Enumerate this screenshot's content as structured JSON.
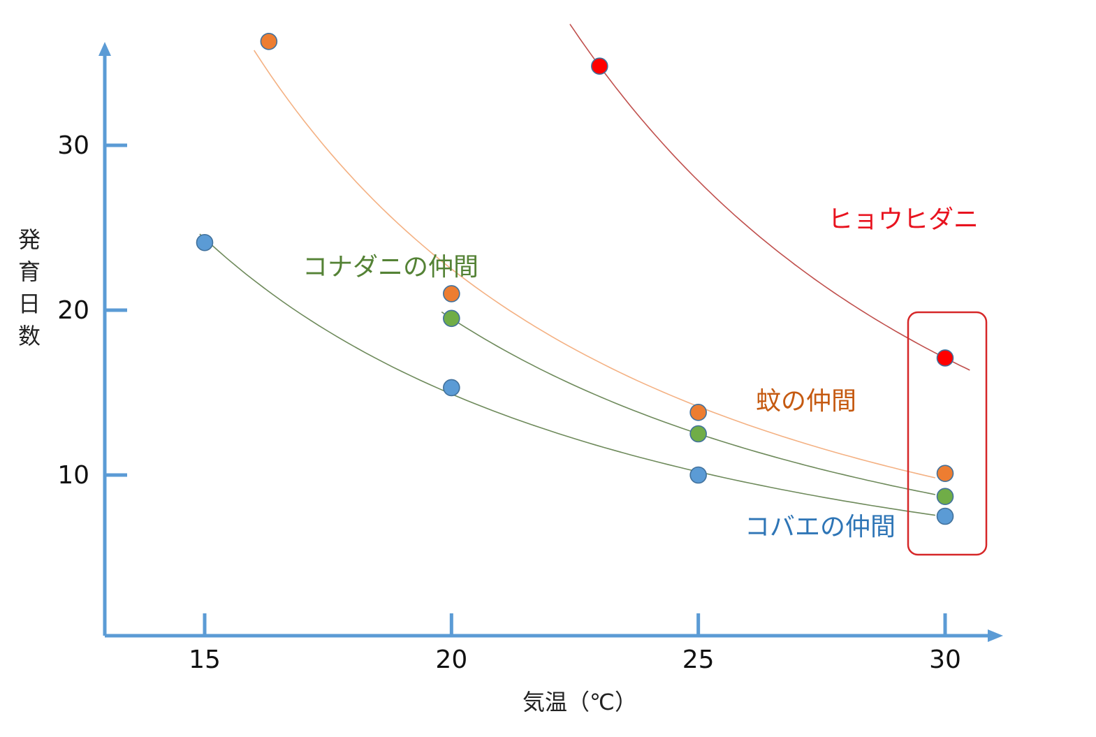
{
  "chart_data": {
    "type": "scatter",
    "title": "",
    "xlabel": "気温（℃）",
    "ylabel": "発育日数",
    "x_ticks": [
      15,
      20,
      25,
      30
    ],
    "y_ticks": [
      10,
      20,
      30
    ],
    "xlim": [
      13,
      31.2
    ],
    "ylim": [
      0,
      36
    ],
    "grid": false,
    "legend": "none",
    "colors": {
      "axis": "#5b9bd5",
      "highlight_box": "#d62728"
    },
    "series": [
      {
        "name": "ヒョウヒダニ",
        "color": "#ff0000",
        "label_color": "#e8131f",
        "line_color": "#c0504d",
        "x": [
          23,
          30
        ],
        "y": [
          34.8,
          17.1
        ],
        "fit": {
          "from": 22.4,
          "to": 30.5
        }
      },
      {
        "name": "蚊の仲間",
        "color": "#ed7d31",
        "label_color": "#c55a11",
        "line_color": "#f4b183",
        "x": [
          16.3,
          20,
          25,
          30
        ],
        "y": [
          36.3,
          21,
          13.8,
          10.1
        ],
        "fit": {
          "from": 16,
          "to": 29.8
        }
      },
      {
        "name": "コナダニの仲間",
        "color": "#70ad47",
        "label_color": "#548235",
        "line_color": "#6e8a5b",
        "x": [
          20,
          25,
          30
        ],
        "y": [
          19.5,
          12.5,
          8.7
        ],
        "fit": {
          "from": 19.8,
          "to": 29.8
        }
      },
      {
        "name": "コバエの仲間",
        "color": "#5b9bd5",
        "label_color": "#2e75b6",
        "line_color": "#6e8a5b",
        "x": [
          15,
          20,
          25,
          30
        ],
        "y": [
          24.1,
          15.3,
          10,
          7.5
        ],
        "fit": {
          "from": 14.9,
          "to": 29.8
        }
      }
    ],
    "highlight": {
      "x": 30
    }
  }
}
